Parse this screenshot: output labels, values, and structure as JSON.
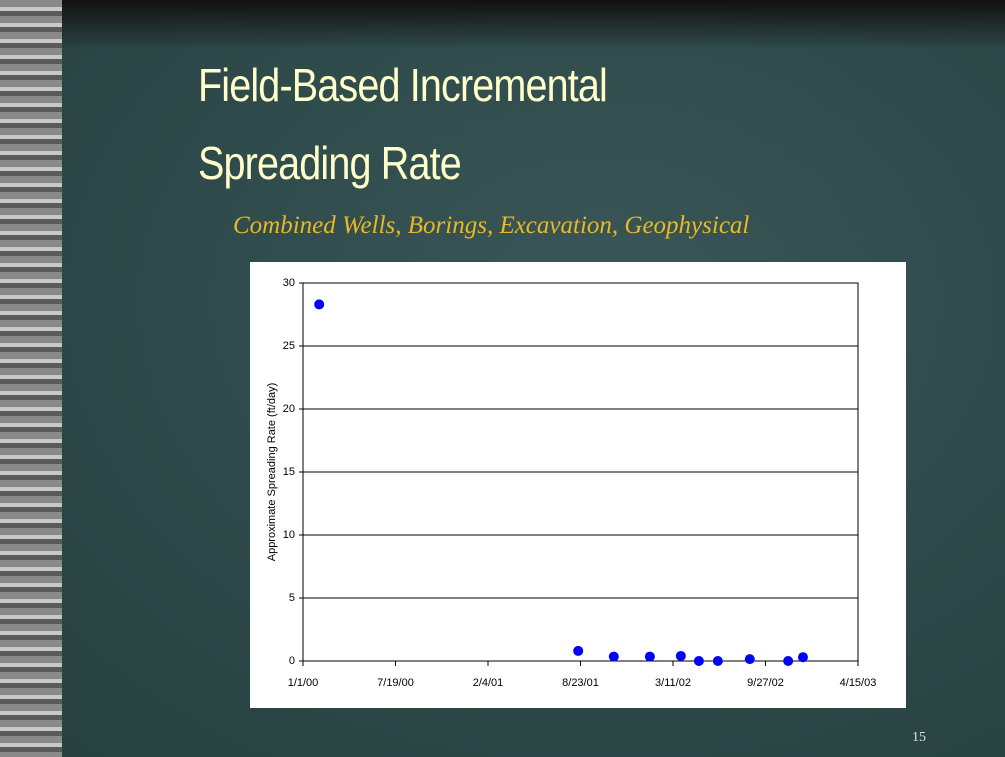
{
  "title_lines": [
    "Field-Based Incremental",
    "Spreading Rate"
  ],
  "subtitle": "Combined Wells, Borings, Excavation, Geophysical",
  "page_number": "15",
  "chart_data": {
    "type": "scatter",
    "y_label": "Approximate Spreading Rate (ft/day)",
    "x": [
      "2/5/00",
      "8/18/01",
      "11/3/01",
      "1/20/02",
      "3/28/02",
      "5/6/02",
      "6/16/02",
      "8/24/02",
      "11/15/02",
      "12/17/02"
    ],
    "values": [
      28.3,
      0.8,
      0.35,
      0.35,
      0.4,
      0,
      0,
      0.15,
      0,
      0.3
    ],
    "color": "#0000ff",
    "xlim": [
      "1/1/00",
      "4/15/03"
    ],
    "xticks": [
      "1/1/00",
      "7/19/00",
      "2/4/01",
      "8/23/01",
      "3/11/02",
      "9/27/02",
      "4/15/03"
    ],
    "ylim": [
      0,
      30
    ],
    "yticks": [
      0,
      5,
      10,
      15,
      20,
      25,
      30
    ],
    "grid": true
  }
}
